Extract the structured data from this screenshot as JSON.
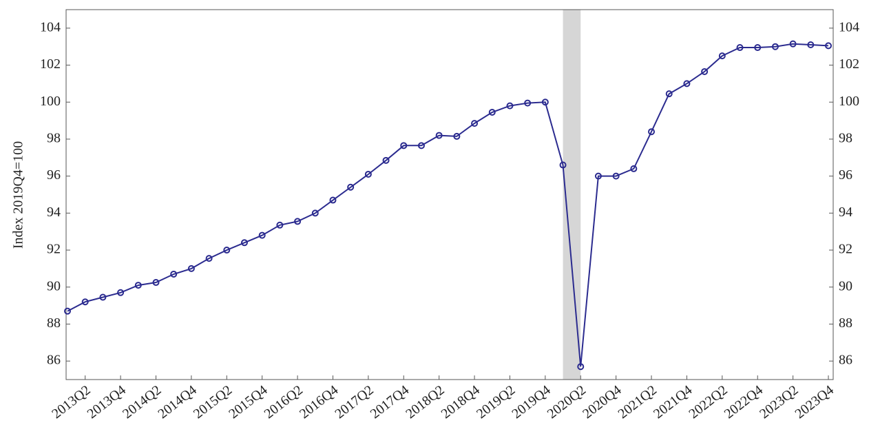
{
  "chart_data": {
    "type": "line",
    "y_label": "Index 2019Q4=100",
    "categories": [
      null,
      "2013Q2",
      null,
      "2013Q4",
      null,
      "2014Q2",
      null,
      "2014Q4",
      null,
      "2015Q2",
      null,
      "2015Q4",
      null,
      "2016Q2",
      null,
      "2016Q4",
      null,
      "2017Q2",
      null,
      "2017Q4",
      null,
      "2018Q2",
      null,
      "2018Q4",
      null,
      "2019Q2",
      null,
      "2019Q4",
      null,
      "2020Q2",
      null,
      "2020Q4",
      null,
      "2021Q2",
      null,
      "2021Q4",
      null,
      "2022Q2",
      null,
      "2022Q4",
      null,
      "2023Q2",
      null,
      "2023Q4"
    ],
    "series": [
      {
        "color": "#2b2b8f",
        "values": [
          88.7,
          89.2,
          89.45,
          89.7,
          90.1,
          90.25,
          90.7,
          91.0,
          91.55,
          92.0,
          92.4,
          92.8,
          93.35,
          93.55,
          94.0,
          94.7,
          95.4,
          96.1,
          96.85,
          97.65,
          97.65,
          98.2,
          98.15,
          98.85,
          99.45,
          99.8,
          99.95,
          100.0,
          96.6,
          85.7,
          96.0,
          96.0,
          96.4,
          98.4,
          100.45,
          101.0,
          101.65,
          102.5,
          102.95,
          102.95,
          103.0,
          103.15,
          103.1,
          103.05
        ]
      }
    ],
    "shaded_span": {
      "from": 28,
      "to": 29,
      "color": "#d6d6d6"
    },
    "ylim": [
      85,
      105
    ],
    "yticks": [
      86,
      88,
      90,
      92,
      94,
      96,
      98,
      100,
      102,
      104
    ],
    "right_axis_ticks": true,
    "grid": false
  }
}
